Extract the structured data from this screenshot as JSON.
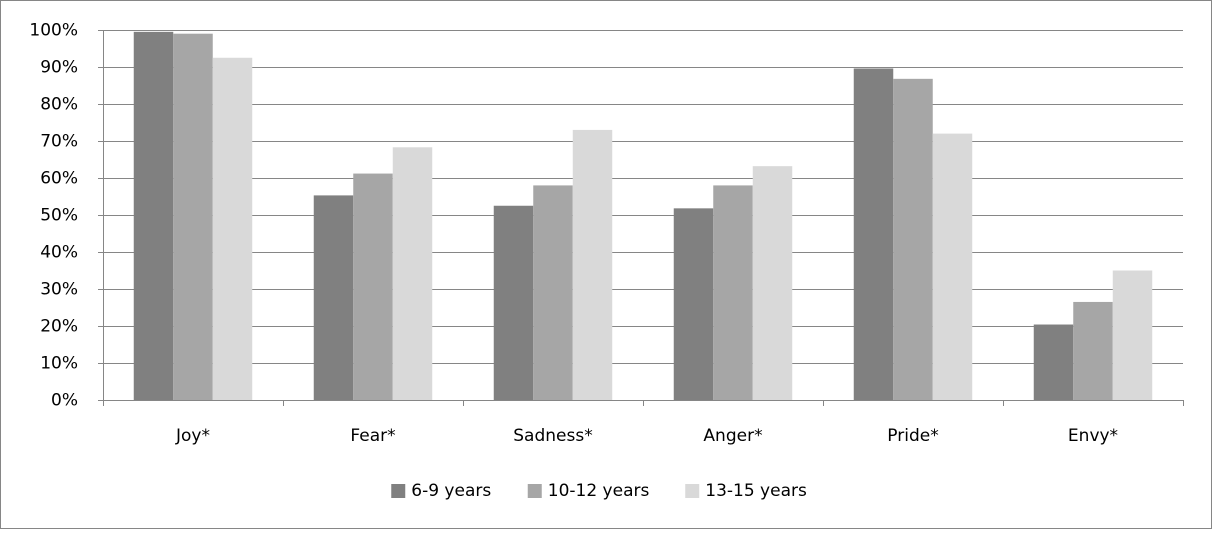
{
  "chart_data": {
    "type": "bar",
    "categories": [
      "Joy*",
      "Fear*",
      "Sadness*",
      "Anger*",
      "Pride*",
      "Envy*"
    ],
    "series": [
      {
        "name": "6-9 years",
        "color": "#808080",
        "values": [
          99.5,
          55.3,
          52.5,
          51.8,
          89.6,
          20.4
        ]
      },
      {
        "name": "10-12 years",
        "color": "#a6a6a6",
        "values": [
          99,
          61.2,
          58,
          58,
          86.8,
          26.5
        ]
      },
      {
        "name": "13-15 years",
        "color": "#d9d9d9",
        "values": [
          92.5,
          68.3,
          73,
          63.2,
          72,
          35
        ]
      }
    ],
    "ylim": [
      0,
      100
    ],
    "yticks": [
      {
        "value": 0,
        "label": "0%"
      },
      {
        "value": 10,
        "label": "10%"
      },
      {
        "value": 20,
        "label": "20%"
      },
      {
        "value": 30,
        "label": "30%"
      },
      {
        "value": 40,
        "label": "40%"
      },
      {
        "value": 50,
        "label": "50%"
      },
      {
        "value": 60,
        "label": "60%"
      },
      {
        "value": 70,
        "label": "70%"
      },
      {
        "value": 80,
        "label": "80%"
      },
      {
        "value": 90,
        "label": "90%"
      },
      {
        "value": 100,
        "label": "100%"
      }
    ],
    "grid": true,
    "legend": "bottom"
  }
}
